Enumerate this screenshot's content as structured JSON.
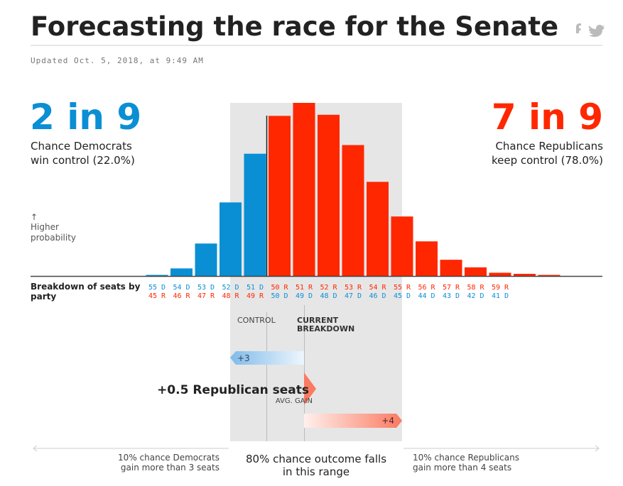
{
  "chart_data": {
    "type": "bar",
    "title": "Forecasting the race for the Senate",
    "updated": "Updated Oct. 5, 2018, at 9:49 AM",
    "dem_odds": "2 in 9",
    "dem_text": [
      "Chance Democrats",
      "win control (22.0%)"
    ],
    "rep_odds": "7 in 9",
    "rep_text": [
      "Chance Republicans",
      "keep control (78.0%)"
    ],
    "y_arrow": "↑",
    "y_label": [
      "Higher",
      "probability"
    ],
    "x_label": [
      "Breakdown of seats by",
      "party"
    ],
    "categories": [
      [
        "55 D",
        "45 R"
      ],
      [
        "54 D",
        "46 R"
      ],
      [
        "53 D",
        "47 R"
      ],
      [
        "52 D",
        "48 R"
      ],
      [
        "51 D",
        "49 R"
      ],
      [
        "50 R",
        "50 D"
      ],
      [
        "51 R",
        "49 D"
      ],
      [
        "52 R",
        "48 D"
      ],
      [
        "53 R",
        "47 D"
      ],
      [
        "54 R",
        "46 D"
      ],
      [
        "55 R",
        "45 D"
      ],
      [
        "56 R",
        "44 D"
      ],
      [
        "57 R",
        "43 D"
      ],
      [
        "58 R",
        "42 D"
      ],
      [
        "59 R",
        "41 D"
      ],
      null,
      null
    ],
    "values": [
      0.1,
      0.7,
      3.0,
      6.8,
      11.3,
      14.8,
      16.0,
      14.9,
      12.1,
      8.7,
      5.5,
      3.2,
      1.5,
      0.8,
      0.3,
      0.2,
      0.1
    ],
    "colors": [
      "#0a8fd4",
      "#0a8fd4",
      "#0a8fd4",
      "#0a8fd4",
      "#0a8fd4",
      "#ff2700",
      "#ff2700",
      "#ff2700",
      "#ff2700",
      "#ff2700",
      "#ff2700",
      "#ff2700",
      "#ff2700",
      "#ff2700",
      "#ff2700",
      "#ff2700",
      "#ff2700"
    ],
    "control_label": "CONTROL",
    "current_label": [
      "CURRENT",
      "BREAKDOWN"
    ],
    "dem_range": "+3",
    "rep_range": "+4",
    "avg_gain": "+0.5 Republican seats",
    "avg_gain_label": "AVG. GAIN",
    "left_note": [
      "10% chance Democrats",
      "gain more than 3 seats"
    ],
    "center_note": [
      "80% chance outcome falls",
      "in this range"
    ],
    "right_note": [
      "10% chance Republicans",
      "gain more than 4 seats"
    ]
  }
}
